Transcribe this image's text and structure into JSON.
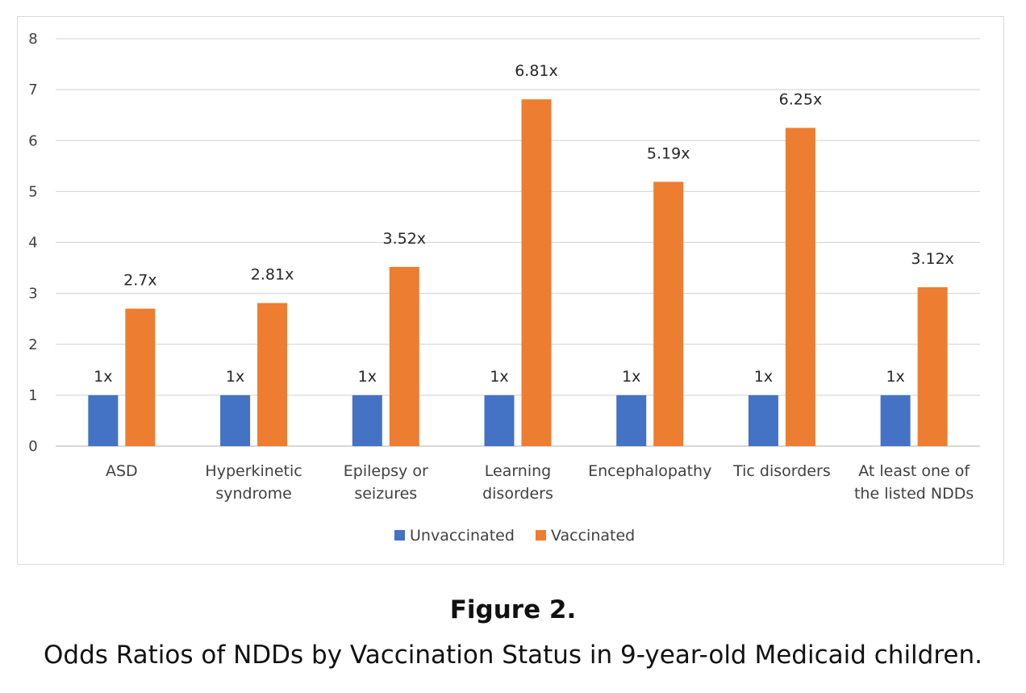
{
  "chart_data": {
    "type": "bar",
    "categories": [
      [
        "ASD"
      ],
      [
        "Hyperkinetic",
        "syndrome"
      ],
      [
        "Epilepsy or",
        "seizures"
      ],
      [
        "Learning",
        "disorders"
      ],
      [
        "Encephalopathy"
      ],
      [
        "Tic disorders"
      ],
      [
        "At least one of",
        "the listed NDDs"
      ]
    ],
    "series": [
      {
        "name": "Unvaccinated",
        "color": "#4472c4",
        "values": [
          1,
          1,
          1,
          1,
          1,
          1,
          1
        ],
        "labels": [
          "1x",
          "1x",
          "1x",
          "1x",
          "1x",
          "1x",
          "1x"
        ]
      },
      {
        "name": "Vaccinated",
        "color": "#ed7d31",
        "values": [
          2.7,
          2.81,
          3.52,
          6.81,
          5.19,
          6.25,
          3.12
        ],
        "labels": [
          "2.7x",
          "2.81x",
          "3.52x",
          "6.81x",
          "5.19x",
          "6.25x",
          "3.12x"
        ]
      }
    ],
    "y_ticks": [
      "0",
      "1",
      "2",
      "3",
      "4",
      "5",
      "6",
      "7",
      "8"
    ],
    "ylim": [
      0,
      8
    ],
    "grid": true,
    "legend": "bottom",
    "title": "",
    "xlabel": "",
    "ylabel": ""
  },
  "figure": {
    "title": "Figure 2.",
    "caption": "Odds Ratios of NDDs by Vaccination Status in 9-year-old Medicaid children."
  }
}
